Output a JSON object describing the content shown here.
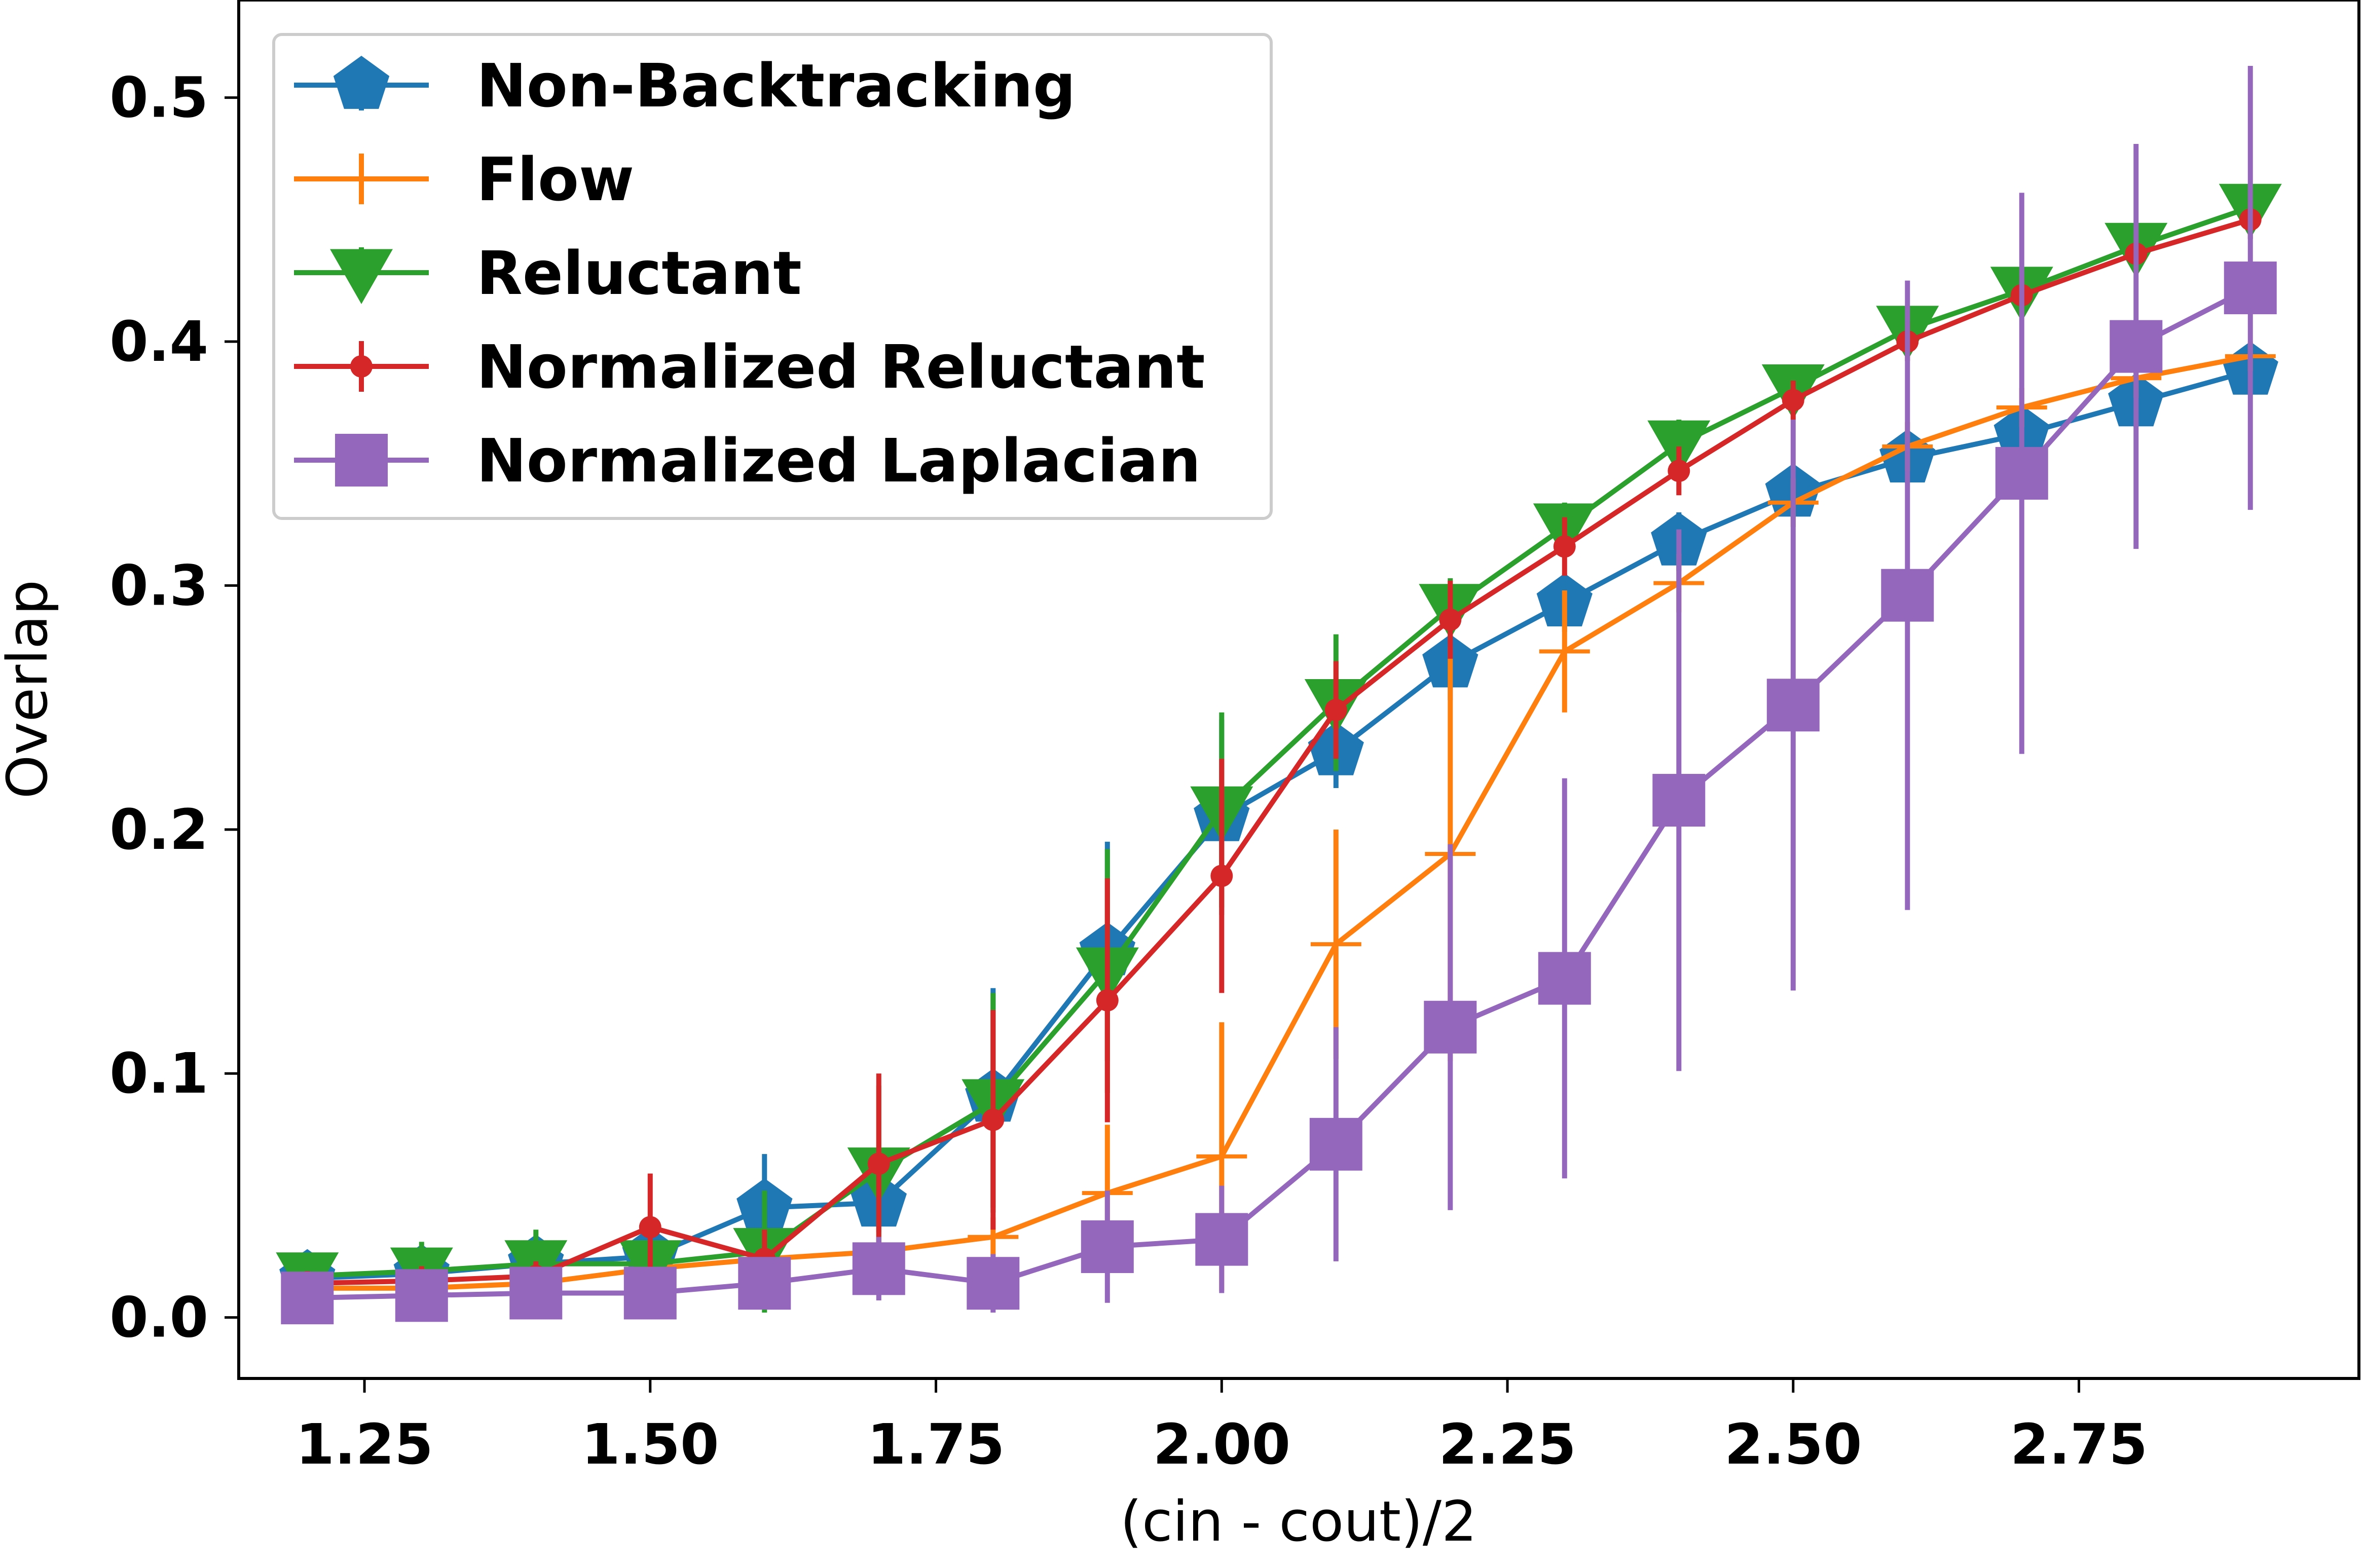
{
  "chart_data": {
    "type": "line",
    "title": "",
    "xlabel": "(cin - cout)/2",
    "ylabel": "Overlap",
    "xlim": [
      1.14,
      2.995
    ],
    "ylim": [
      -0.025,
      0.54
    ],
    "xticks": [
      1.25,
      1.5,
      1.75,
      2.0,
      2.25,
      2.5,
      2.75
    ],
    "xtick_labels": [
      "1.25",
      "1.50",
      "1.75",
      "2.00",
      "2.25",
      "2.50",
      "2.75"
    ],
    "yticks": [
      0.0,
      0.1,
      0.2,
      0.3,
      0.4,
      0.5
    ],
    "ytick_labels": [
      "0.0",
      "0.1",
      "0.2",
      "0.3",
      "0.4",
      "0.5"
    ],
    "grid": false,
    "legend_position": "top-left",
    "x": [
      1.2,
      1.3,
      1.4,
      1.5,
      1.6,
      1.7,
      1.8,
      1.9,
      2.0,
      2.1,
      2.2,
      2.3,
      2.4,
      2.5,
      2.6,
      2.7,
      2.8,
      2.9
    ],
    "series": [
      {
        "name": "Non-Backtracking",
        "color": "#1f77b4",
        "marker": "pentagon",
        "values": [
          0.016,
          0.018,
          0.022,
          0.025,
          0.045,
          0.047,
          0.09,
          0.15,
          0.205,
          0.232,
          0.268,
          0.293,
          0.318,
          0.338,
          0.352,
          0.362,
          0.375,
          0.388
        ],
        "errors": [
          0.006,
          0.006,
          0.008,
          0.008,
          0.022,
          0.012,
          0.045,
          0.045,
          0.04,
          0.015,
          0.015,
          0.012,
          0.012,
          0.01,
          0.01,
          0.01,
          0.01,
          0.01
        ]
      },
      {
        "name": "Flow",
        "color": "#ff7f0e",
        "marker": "plus",
        "values": [
          0.012,
          0.012,
          0.014,
          0.02,
          0.024,
          0.027,
          0.033,
          0.051,
          0.066,
          0.153,
          0.19,
          0.273,
          0.301,
          0.334,
          0.357,
          0.373,
          0.385,
          0.394
        ],
        "errors": [
          0.004,
          0.004,
          0.005,
          0.006,
          0.006,
          0.006,
          0.008,
          0.028,
          0.055,
          0.047,
          0.085,
          0.025,
          0.012,
          0.01,
          0.01,
          0.008,
          0.008,
          0.006
        ]
      },
      {
        "name": "Reluctant",
        "color": "#2ca02c",
        "marker": "triangle-down",
        "values": [
          0.017,
          0.019,
          0.022,
          0.022,
          0.027,
          0.06,
          0.088,
          0.142,
          0.208,
          0.252,
          0.291,
          0.324,
          0.358,
          0.381,
          0.405,
          0.421,
          0.439,
          0.455
        ],
        "errors": [
          0.008,
          0.012,
          0.014,
          0.007,
          0.025,
          0.035,
          0.045,
          0.05,
          0.04,
          0.028,
          0.012,
          0.01,
          0.01,
          0.008,
          0.008,
          0.008,
          0.008,
          0.008
        ]
      },
      {
        "name": "Normalized Reluctant",
        "color": "#d62728",
        "marker": "circle",
        "values": [
          0.014,
          0.015,
          0.017,
          0.037,
          0.024,
          0.063,
          0.081,
          0.13,
          0.181,
          0.249,
          0.286,
          0.316,
          0.347,
          0.376,
          0.4,
          0.419,
          0.436,
          0.45
        ],
        "errors": [
          0.005,
          0.006,
          0.006,
          0.022,
          0.012,
          0.037,
          0.045,
          0.05,
          0.048,
          0.02,
          0.016,
          0.012,
          0.01,
          0.008,
          0.008,
          0.008,
          0.008,
          0.008
        ]
      },
      {
        "name": "Normalized Laplacian",
        "color": "#9467bd",
        "marker": "square",
        "values": [
          0.008,
          0.009,
          0.01,
          0.01,
          0.014,
          0.02,
          0.014,
          0.029,
          0.032,
          0.071,
          0.119,
          0.139,
          0.212,
          0.251,
          0.296,
          0.346,
          0.398,
          0.422
        ],
        "errors": [
          0.004,
          0.004,
          0.004,
          0.006,
          0.01,
          0.013,
          0.012,
          0.023,
          0.022,
          0.048,
          0.075,
          0.082,
          0.111,
          0.117,
          0.129,
          0.115,
          0.083,
          0.091
        ]
      }
    ]
  }
}
